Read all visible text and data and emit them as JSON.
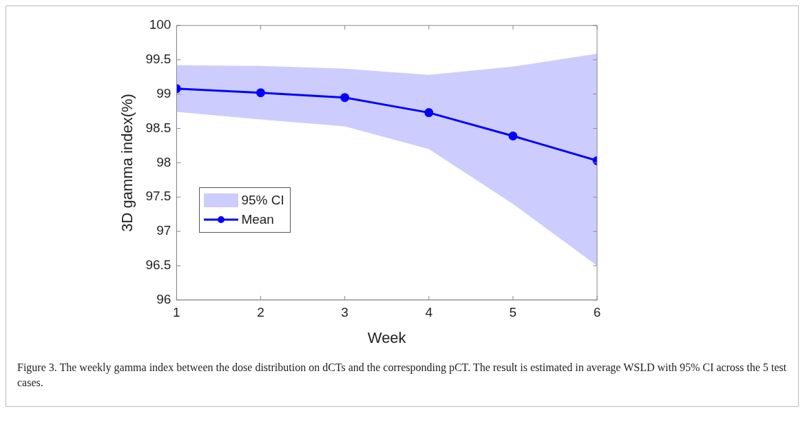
{
  "chart_data": {
    "type": "line",
    "xlabel": "Week",
    "ylabel": "3D gamma index(%)",
    "x": [
      1,
      2,
      3,
      4,
      5,
      6
    ],
    "xlim": [
      1,
      6
    ],
    "xticks": [
      1,
      2,
      3,
      4,
      5,
      6
    ],
    "ylim": [
      96,
      100
    ],
    "yticks": [
      96,
      96.5,
      97,
      97.5,
      98,
      98.5,
      99,
      99.5,
      100
    ],
    "series": [
      {
        "name": "Mean",
        "type": "line",
        "color": "#0000ff",
        "values": [
          99.08,
          99.02,
          98.95,
          98.73,
          98.39,
          98.03
        ],
        "lower": [
          98.74,
          98.63,
          98.53,
          98.2,
          97.4,
          96.5
        ],
        "upper": [
          99.42,
          99.41,
          99.37,
          99.28,
          99.4,
          99.59
        ]
      }
    ],
    "marker": "circle",
    "line_style": "solid",
    "grid": false,
    "legend": "bottom left",
    "annotations": [
      "95% CI",
      "Figure 3. The weekly gamma index between the dose distribution on dCTs and the corresponding pCT. The result is estimated in average WSLD with 95% CI across the 5 test cases."
    ]
  }
}
